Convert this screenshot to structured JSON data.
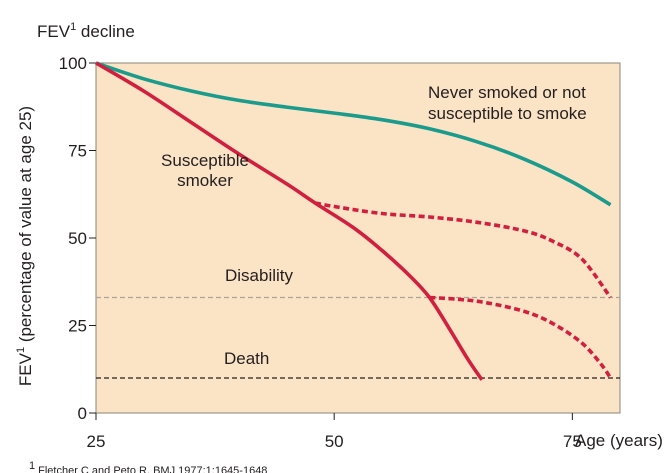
{
  "chart_data": {
    "type": "line",
    "title_prefix": "FEV",
    "title_sup": "1",
    "title_suffix": " decline",
    "ylabel_prefix": "FEV",
    "ylabel_sup": "1",
    "ylabel_suffix": " (percentage of value at age 25)",
    "xlabel": "Age (years)",
    "xlim": [
      25,
      80
    ],
    "ylim": [
      0,
      100
    ],
    "x_ticks": [
      25,
      50,
      75
    ],
    "y_ticks": [
      0,
      25,
      50,
      75,
      100
    ],
    "grid": false,
    "background": "#fbe3c5",
    "series": [
      {
        "id": "never",
        "name_lines": [
          "Never smoked or not",
          "susceptible to smoke"
        ],
        "color": "#1a9b8c",
        "style": "solid",
        "x": [
          25,
          30,
          35,
          40,
          45,
          50,
          55,
          60,
          65,
          70,
          75,
          79
        ],
        "y": [
          100,
          95.5,
          92,
          89.3,
          87.4,
          85.7,
          83.8,
          81.2,
          77.5,
          72.5,
          66,
          59.5
        ]
      },
      {
        "id": "susceptible",
        "name_lines": [
          "Susceptible",
          "smoker"
        ],
        "color": "#d1203f",
        "style": "solid",
        "x": [
          25,
          30,
          35,
          40,
          45,
          48,
          52,
          55,
          58,
          60,
          62,
          64,
          65.5
        ],
        "y": [
          100,
          92,
          83,
          74,
          65.5,
          60,
          53,
          46.5,
          39,
          33,
          24.5,
          15.5,
          9.5
        ]
      },
      {
        "id": "stop_at_48",
        "color": "#d1203f",
        "style": "dashed",
        "x": [
          48,
          50,
          55,
          60,
          65,
          70,
          73,
          76,
          79
        ],
        "y": [
          60,
          59,
          57,
          56,
          54.5,
          52,
          49,
          44,
          33
        ]
      },
      {
        "id": "stop_at_60",
        "color": "#d1203f",
        "style": "dashed",
        "x": [
          60,
          63,
          66,
          70,
          73,
          76,
          78,
          79
        ],
        "y": [
          33,
          32.5,
          31.5,
          29,
          25.5,
          20,
          14,
          10
        ]
      }
    ],
    "reference_lines": [
      {
        "label": "Disability",
        "y": 33,
        "color": "#aaa49a",
        "style": "dashed"
      },
      {
        "label": "Death",
        "y": 10,
        "color": "#231f20",
        "style": "dashed"
      }
    ],
    "footnote_sup": "1",
    "footnote_text": "Fletcher C and Peto R. BMJ 1977;1:1645-1648"
  }
}
